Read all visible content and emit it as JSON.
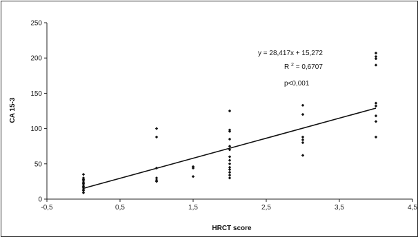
{
  "chart_data": {
    "type": "scatter",
    "xlabel": "HRCT score",
    "ylabel": "CA 15-3",
    "xlim": [
      -0.5,
      4.5
    ],
    "ylim": [
      0,
      250
    ],
    "x_ticks": [
      "-0,5",
      "0,5",
      "1,5",
      "2,5",
      "3,5",
      "4,5"
    ],
    "x_tick_values": [
      -0.5,
      0.5,
      1.5,
      2.5,
      3.5,
      4.5
    ],
    "y_ticks": [
      "0",
      "50",
      "100",
      "150",
      "200",
      "250"
    ],
    "y_tick_values": [
      0,
      50,
      100,
      150,
      200,
      250
    ],
    "grid": false,
    "marker_color": "#111111",
    "line_color": "#111111",
    "points": [
      {
        "x": 0,
        "y": 35
      },
      {
        "x": 0,
        "y": 30
      },
      {
        "x": 0,
        "y": 28
      },
      {
        "x": 0,
        "y": 26
      },
      {
        "x": 0,
        "y": 24
      },
      {
        "x": 0,
        "y": 22
      },
      {
        "x": 0,
        "y": 20
      },
      {
        "x": 0,
        "y": 18
      },
      {
        "x": 0,
        "y": 16
      },
      {
        "x": 0,
        "y": 14
      },
      {
        "x": 0,
        "y": 12
      },
      {
        "x": 0,
        "y": 9
      },
      {
        "x": 1,
        "y": 100
      },
      {
        "x": 1,
        "y": 88
      },
      {
        "x": 1,
        "y": 44
      },
      {
        "x": 1,
        "y": 30
      },
      {
        "x": 1,
        "y": 27
      },
      {
        "x": 1,
        "y": 25
      },
      {
        "x": 1.5,
        "y": 46
      },
      {
        "x": 1.5,
        "y": 44
      },
      {
        "x": 1.5,
        "y": 32
      },
      {
        "x": 2,
        "y": 125
      },
      {
        "x": 2,
        "y": 98
      },
      {
        "x": 2,
        "y": 96
      },
      {
        "x": 2,
        "y": 85
      },
      {
        "x": 2,
        "y": 75
      },
      {
        "x": 2,
        "y": 70
      },
      {
        "x": 2,
        "y": 60
      },
      {
        "x": 2,
        "y": 55
      },
      {
        "x": 2,
        "y": 50
      },
      {
        "x": 2,
        "y": 45
      },
      {
        "x": 2,
        "y": 42
      },
      {
        "x": 2,
        "y": 38
      },
      {
        "x": 2,
        "y": 34
      },
      {
        "x": 2,
        "y": 30
      },
      {
        "x": 3,
        "y": 133
      },
      {
        "x": 3,
        "y": 120
      },
      {
        "x": 3,
        "y": 88
      },
      {
        "x": 3,
        "y": 84
      },
      {
        "x": 3,
        "y": 80
      },
      {
        "x": 3,
        "y": 62
      },
      {
        "x": 4,
        "y": 207
      },
      {
        "x": 4,
        "y": 202
      },
      {
        "x": 4,
        "y": 199
      },
      {
        "x": 4,
        "y": 190
      },
      {
        "x": 4,
        "y": 136
      },
      {
        "x": 4,
        "y": 132
      },
      {
        "x": 4,
        "y": 118
      },
      {
        "x": 4,
        "y": 110
      },
      {
        "x": 4,
        "y": 88
      }
    ],
    "trendline": {
      "slope": 28.417,
      "intercept": 15.272,
      "x_range": [
        0,
        4
      ]
    },
    "annotations": {
      "equation": "y = 28,417x + 15,272",
      "r2_prefix": "R",
      "r2_exp": "2",
      "r2_value": " = 0,6707",
      "pvalue": "p<0,001"
    }
  }
}
